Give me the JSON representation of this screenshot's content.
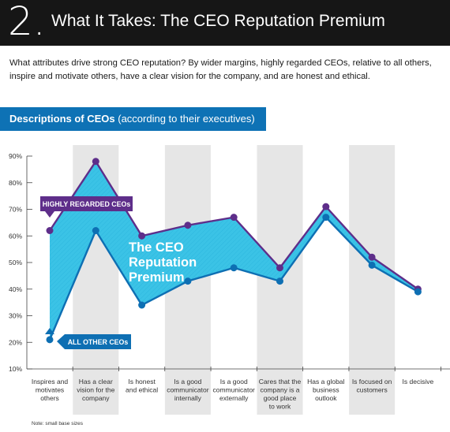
{
  "header": {
    "number": "2.",
    "title": "What It Takes: The CEO Reputation Premium"
  },
  "intro": "What attributes drive strong CEO reputation? By wider margins, highly regarded CEOs, relative to all others, inspire and motivate others, have a clear vision for the company, and are honest and ethical.",
  "banner": {
    "bold": "Descriptions of CEOs",
    "normal": " (according to their executives)"
  },
  "footnote": "Note: small base sizes",
  "colors": {
    "highly_regarded": "#5e2e8a",
    "all_other": "#0e6fb3",
    "premium_fill": "#3bc3e6",
    "band": "#e6e6e6",
    "header_bg": "#161616",
    "banner_bg": "#0e72b5"
  },
  "chart_data": {
    "type": "line",
    "title": "Descriptions of CEOs",
    "subtitle": "(according to their executives)",
    "categories": [
      "Inspires and motivates others",
      "Has a clear vision for the company",
      "Is honest and ethical",
      "Is a good communicator internally",
      "Is a good communicator externally",
      "Cares that the company is a good place to work",
      "Has a global business outlook",
      "Is focused on customers",
      "Is decisive"
    ],
    "category_lines": [
      [
        "Inspires and",
        "motivates",
        "others"
      ],
      [
        "Has a clear",
        "vision for the",
        "company"
      ],
      [
        "Is honest",
        "and ethical"
      ],
      [
        "Is a good",
        "communicator",
        "internally"
      ],
      [
        "Is a good",
        "communicator",
        "externally"
      ],
      [
        "Cares that the",
        "company is a",
        "good place",
        "to work"
      ],
      [
        "Has a global",
        "business",
        "outlook"
      ],
      [
        "Is focused on",
        "customers"
      ],
      [
        "Is decisive"
      ]
    ],
    "series": [
      {
        "name": "HIGHLY REGARDED CEOs",
        "values": [
          62,
          88,
          60,
          64,
          67,
          48,
          71,
          52,
          40
        ]
      },
      {
        "name": "ALL OTHER CEOs",
        "values": [
          21,
          62,
          34,
          43,
          48,
          43,
          67,
          49,
          39
        ]
      }
    ],
    "area_label": [
      "The CEO",
      "Reputation",
      "Premium"
    ],
    "y_ticks": [
      "90%",
      "80%",
      "70%",
      "60%",
      "50%",
      "40%",
      "30%",
      "20%",
      "10%"
    ],
    "ylim": [
      10,
      90
    ],
    "shaded_categories": [
      1,
      3,
      5,
      7
    ]
  }
}
